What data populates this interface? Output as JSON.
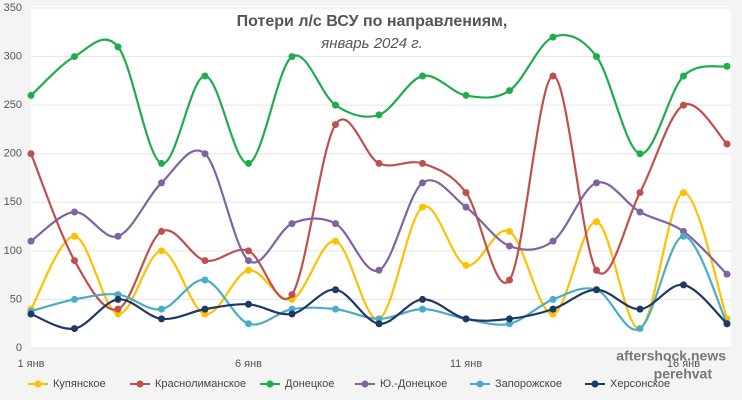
{
  "chart_data": {
    "type": "line",
    "title": "Потери л/с ВСУ по направлениям,",
    "subtitle": "январь 2024 г.",
    "categories": [
      "1 янв",
      null,
      null,
      null,
      null,
      "6 янв",
      null,
      null,
      null,
      null,
      "11 янв",
      null,
      null,
      null,
      null,
      "16 янв",
      null
    ],
    "ylim": [
      0,
      350
    ],
    "yticks": [
      0,
      50,
      100,
      150,
      200,
      250,
      300,
      350
    ],
    "grid": true,
    "smooth": true,
    "legend": "bottom",
    "watermark": [
      "aftershock.news",
      "perehvat"
    ],
    "series": [
      {
        "name": "Купянское",
        "color": "#ffc000",
        "values": [
          40,
          115,
          35,
          100,
          35,
          80,
          50,
          110,
          30,
          145,
          85,
          120,
          35,
          130,
          20,
          160,
          30
        ]
      },
      {
        "name": "Краснолиманское",
        "color": "#c0504d",
        "values": [
          200,
          90,
          40,
          120,
          90,
          100,
          55,
          230,
          190,
          190,
          160,
          70,
          280,
          80,
          160,
          250,
          210
        ]
      },
      {
        "name": "Донецкое",
        "color": "#1fad4b",
        "values": [
          260,
          300,
          310,
          190,
          280,
          190,
          300,
          250,
          240,
          280,
          260,
          265,
          320,
          300,
          200,
          280,
          290
        ]
      },
      {
        "name": "Ю.-Донецкое",
        "color": "#8064a2",
        "values": [
          110,
          140,
          115,
          170,
          200,
          90,
          128,
          128,
          80,
          170,
          145,
          105,
          110,
          170,
          140,
          120,
          76
        ]
      },
      {
        "name": "Запорожское",
        "color": "#4bacc6",
        "values": [
          38,
          50,
          55,
          40,
          70,
          25,
          40,
          40,
          30,
          40,
          30,
          25,
          50,
          60,
          20,
          115,
          25
        ]
      },
      {
        "name": "Херсонское",
        "color": "#1f3864",
        "values": [
          35,
          20,
          50,
          30,
          40,
          45,
          35,
          60,
          25,
          50,
          30,
          30,
          40,
          60,
          40,
          65,
          25
        ]
      }
    ]
  }
}
